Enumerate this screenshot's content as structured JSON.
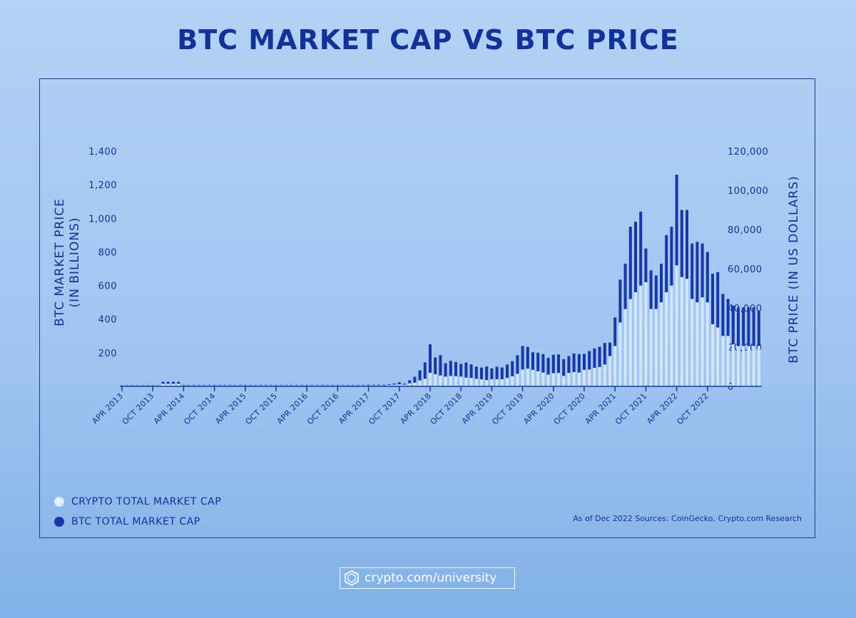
{
  "title": "BTC MARKET CAP VS BTC PRICE",
  "chart_data": {
    "type": "bar",
    "left_axis": {
      "label_line1": "BTC MARKET PRICE",
      "label_line2": "(IN BILLIONS)",
      "ticks": [
        "200",
        "400",
        "600",
        "800",
        "1,000",
        "1,200",
        "1,400"
      ],
      "tick_values": [
        200,
        400,
        600,
        800,
        1000,
        1200,
        1400
      ],
      "ylim": [
        0,
        1400
      ]
    },
    "right_axis": {
      "label": "BTC PRICE (IN US DOLLARS)",
      "ticks": [
        "0",
        "20,000",
        "40,000",
        "60,000",
        "80,000",
        "100,000",
        "120,000"
      ],
      "tick_values": [
        0,
        20000,
        40000,
        60000,
        80000,
        100000,
        120000
      ],
      "ylim": [
        0,
        120000
      ]
    },
    "x_tick_labels": [
      "APR 2013",
      "OCT 2013",
      "APR 2014",
      "OCT 2014",
      "APR 2015",
      "OCT 2015",
      "APR 2016",
      "OCT 2016",
      "APR 2017",
      "OCT 2017",
      "APR 2018",
      "OCT 2018",
      "APR 2019",
      "OCT 2019",
      "APR 2020",
      "OCT 2020",
      "APR 2021",
      "OCT 2021",
      "APR 2022",
      "OCT 2022"
    ],
    "x_tick_months": [
      0,
      6,
      12,
      18,
      24,
      30,
      36,
      42,
      48,
      54,
      60,
      66,
      72,
      78,
      84,
      90,
      96,
      102,
      108,
      114
    ],
    "series": [
      {
        "name": "CRYPTO TOTAL MARKET CAP",
        "color": "#dbeafc",
        "values": [
          6,
          6,
          6,
          6,
          6,
          6,
          6,
          6,
          15,
          15,
          15,
          15,
          6,
          6,
          6,
          6,
          6,
          6,
          6,
          6,
          6,
          6,
          6,
          6,
          6,
          6,
          6,
          6,
          6,
          6,
          6,
          6,
          6,
          6,
          6,
          6,
          6,
          6,
          6,
          6,
          6,
          6,
          6,
          6,
          6,
          6,
          6,
          6,
          6,
          6,
          6,
          6,
          8,
          10,
          12,
          10,
          18,
          22,
          35,
          45,
          80,
          72,
          65,
          58,
          62,
          60,
          58,
          52,
          50,
          45,
          42,
          38,
          42,
          42,
          42,
          50,
          60,
          75,
          100,
          105,
          98,
          90,
          82,
          70,
          78,
          80,
          62,
          80,
          85,
          82,
          98,
          100,
          110,
          115,
          130,
          180,
          240,
          380,
          460,
          520,
          560,
          600,
          620,
          460,
          460,
          500,
          560,
          600,
          720,
          650,
          640,
          520,
          500,
          530,
          500,
          370,
          350,
          300,
          300,
          250,
          240,
          240,
          240,
          240,
          240
        ]
      },
      {
        "name": "BTC TOTAL MARKET CAP",
        "color": "#1a36a6",
        "values": [
          2,
          2,
          2,
          2,
          2,
          2,
          2,
          2,
          12,
          12,
          12,
          12,
          3,
          3,
          3,
          3,
          3,
          3,
          3,
          3,
          3,
          3,
          3,
          3,
          3,
          3,
          3,
          3,
          3,
          3,
          3,
          3,
          3,
          3,
          3,
          3,
          3,
          3,
          3,
          3,
          3,
          3,
          3,
          3,
          3,
          3,
          3,
          3,
          4,
          4,
          4,
          4,
          5,
          7,
          12,
          6,
          18,
          35,
          60,
          98,
          170,
          100,
          120,
          80,
          90,
          85,
          75,
          90,
          80,
          72,
          70,
          80,
          65,
          75,
          70,
          80,
          90,
          110,
          140,
          130,
          105,
          110,
          110,
          100,
          110,
          110,
          100,
          100,
          110,
          110,
          95,
          110,
          115,
          120,
          128,
          80,
          170,
          255,
          270,
          430,
          420,
          440,
          200,
          230,
          200,
          230,
          340,
          350,
          540,
          400,
          410,
          330,
          360,
          320,
          300,
          300,
          330,
          250,
          220,
          230,
          230,
          230,
          230,
          230,
          210
        ]
      }
    ],
    "grid": false,
    "legend_position": "bottom-left"
  },
  "source_note": "As of Dec 2022 Sources: CoinGecko, Crypto.com Research",
  "footer_text": "crypto.com/university"
}
